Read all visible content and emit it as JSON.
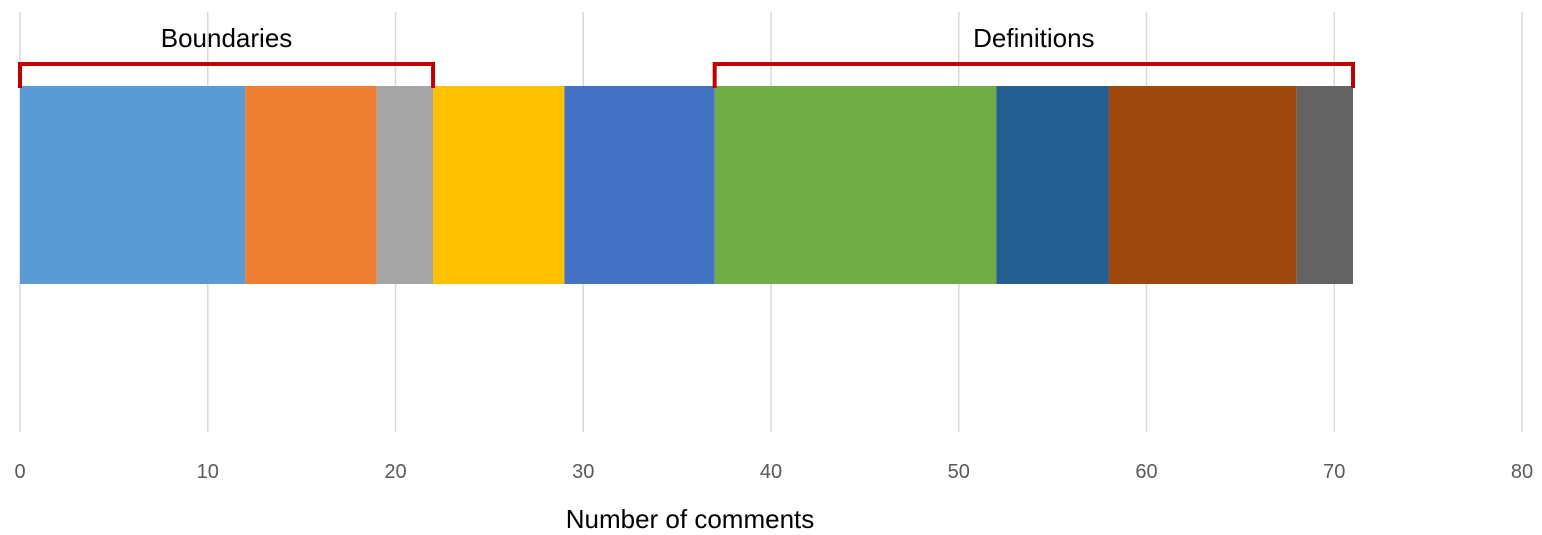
{
  "chart_data": {
    "type": "bar",
    "orientation": "horizontal",
    "stacked": true,
    "xlabel": "Number of comments",
    "xlim": [
      0,
      80
    ],
    "xticks": [
      0,
      10,
      20,
      30,
      40,
      50,
      60,
      70,
      80
    ],
    "grid": true,
    "legend": "none",
    "segments": [
      {
        "value": 12,
        "color": "#5b9bd5"
      },
      {
        "value": 7,
        "color": "#ed7d31"
      },
      {
        "value": 3,
        "color": "#a5a5a5"
      },
      {
        "value": 7,
        "color": "#ffc000"
      },
      {
        "value": 8,
        "color": "#4472c4"
      },
      {
        "value": 15,
        "color": "#70ad47"
      },
      {
        "value": 6,
        "color": "#255e91"
      },
      {
        "value": 10,
        "color": "#9e480e"
      },
      {
        "value": 3,
        "color": "#636363"
      }
    ],
    "annotations": [
      {
        "label": "Boundaries",
        "from": 0,
        "to": 22,
        "color": "#c00000"
      },
      {
        "label": "Definitions",
        "from": 37,
        "to": 71,
        "color": "#c00000"
      }
    ]
  }
}
